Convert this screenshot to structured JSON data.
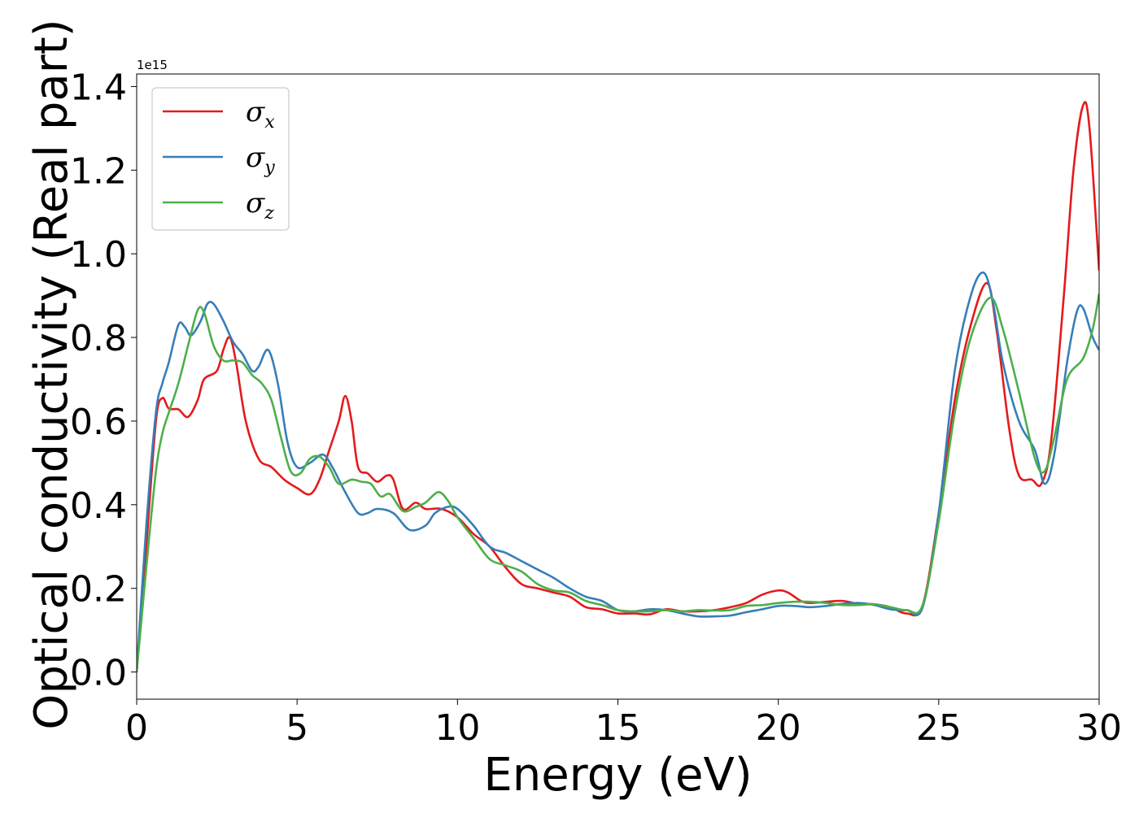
{
  "chart_data": {
    "type": "line",
    "xlabel": "Energy (eV)",
    "ylabel": "Optical conductivity (Real part)",
    "y_offset_label": "1e15",
    "xlim": [
      0,
      30
    ],
    "ylim": [
      -0.065,
      1.43
    ],
    "xticks": [
      0,
      5,
      10,
      15,
      20,
      25,
      30
    ],
    "xtick_labels": [
      "0",
      "5",
      "10",
      "15",
      "20",
      "25",
      "30"
    ],
    "yticks": [
      0.0,
      0.2,
      0.4,
      0.6,
      0.8,
      1.0,
      1.2,
      1.4
    ],
    "ytick_labels": [
      "0.0",
      "0.2",
      "0.4",
      "0.6",
      "0.8",
      "1.0",
      "1.2",
      "1.4"
    ],
    "grid": false,
    "legend_position": "top-left",
    "series": [
      {
        "name": "σx",
        "symbol": "σ",
        "subscript": "x",
        "color": "#e41a1c",
        "points": [
          [
            0,
            0.0
          ],
          [
            0.3,
            0.3
          ],
          [
            0.6,
            0.6
          ],
          [
            0.8,
            0.655
          ],
          [
            1.0,
            0.63
          ],
          [
            1.3,
            0.628
          ],
          [
            1.6,
            0.61
          ],
          [
            1.9,
            0.65
          ],
          [
            2.1,
            0.7
          ],
          [
            2.5,
            0.72
          ],
          [
            2.7,
            0.77
          ],
          [
            2.9,
            0.8
          ],
          [
            3.1,
            0.74
          ],
          [
            3.4,
            0.6
          ],
          [
            3.8,
            0.51
          ],
          [
            4.2,
            0.49
          ],
          [
            4.6,
            0.46
          ],
          [
            5.0,
            0.44
          ],
          [
            5.4,
            0.425
          ],
          [
            5.7,
            0.46
          ],
          [
            6.0,
            0.53
          ],
          [
            6.3,
            0.6
          ],
          [
            6.5,
            0.66
          ],
          [
            6.7,
            0.6
          ],
          [
            6.9,
            0.49
          ],
          [
            7.2,
            0.475
          ],
          [
            7.5,
            0.455
          ],
          [
            7.8,
            0.47
          ],
          [
            8.0,
            0.46
          ],
          [
            8.3,
            0.39
          ],
          [
            8.7,
            0.405
          ],
          [
            9.0,
            0.39
          ],
          [
            9.5,
            0.39
          ],
          [
            10.0,
            0.37
          ],
          [
            10.5,
            0.33
          ],
          [
            11.0,
            0.3
          ],
          [
            11.5,
            0.25
          ],
          [
            12.0,
            0.21
          ],
          [
            12.5,
            0.2
          ],
          [
            13.0,
            0.19
          ],
          [
            13.5,
            0.18
          ],
          [
            14.0,
            0.155
          ],
          [
            14.5,
            0.15
          ],
          [
            15.0,
            0.14
          ],
          [
            15.5,
            0.14
          ],
          [
            16.0,
            0.138
          ],
          [
            16.5,
            0.15
          ],
          [
            17.0,
            0.145
          ],
          [
            17.5,
            0.145
          ],
          [
            18.0,
            0.148
          ],
          [
            18.5,
            0.155
          ],
          [
            19.0,
            0.165
          ],
          [
            19.5,
            0.185
          ],
          [
            20.0,
            0.195
          ],
          [
            20.3,
            0.19
          ],
          [
            20.7,
            0.17
          ],
          [
            21.0,
            0.165
          ],
          [
            21.5,
            0.168
          ],
          [
            22.0,
            0.17
          ],
          [
            22.5,
            0.163
          ],
          [
            23.0,
            0.162
          ],
          [
            23.5,
            0.155
          ],
          [
            24.0,
            0.14
          ],
          [
            24.5,
            0.16
          ],
          [
            25.0,
            0.38
          ],
          [
            25.5,
            0.65
          ],
          [
            26.0,
            0.83
          ],
          [
            26.5,
            0.93
          ],
          [
            26.8,
            0.82
          ],
          [
            27.2,
            0.58
          ],
          [
            27.5,
            0.47
          ],
          [
            27.9,
            0.46
          ],
          [
            28.2,
            0.45
          ],
          [
            28.5,
            0.55
          ],
          [
            28.9,
            0.9
          ],
          [
            29.2,
            1.2
          ],
          [
            29.5,
            1.355
          ],
          [
            29.7,
            1.3
          ],
          [
            30.0,
            0.96
          ]
        ]
      },
      {
        "name": "σy",
        "symbol": "σ",
        "subscript": "y",
        "color": "#377eb8",
        "points": [
          [
            0,
            0.0
          ],
          [
            0.3,
            0.35
          ],
          [
            0.6,
            0.62
          ],
          [
            0.8,
            0.69
          ],
          [
            1.0,
            0.74
          ],
          [
            1.3,
            0.83
          ],
          [
            1.5,
            0.825
          ],
          [
            1.7,
            0.805
          ],
          [
            2.0,
            0.84
          ],
          [
            2.2,
            0.88
          ],
          [
            2.4,
            0.88
          ],
          [
            2.7,
            0.84
          ],
          [
            3.0,
            0.79
          ],
          [
            3.3,
            0.76
          ],
          [
            3.6,
            0.72
          ],
          [
            3.8,
            0.73
          ],
          [
            4.1,
            0.77
          ],
          [
            4.4,
            0.69
          ],
          [
            4.7,
            0.55
          ],
          [
            5.0,
            0.49
          ],
          [
            5.4,
            0.5
          ],
          [
            5.8,
            0.52
          ],
          [
            6.1,
            0.49
          ],
          [
            6.5,
            0.43
          ],
          [
            6.9,
            0.38
          ],
          [
            7.2,
            0.38
          ],
          [
            7.5,
            0.39
          ],
          [
            8.0,
            0.38
          ],
          [
            8.5,
            0.34
          ],
          [
            9.0,
            0.35
          ],
          [
            9.3,
            0.38
          ],
          [
            9.7,
            0.395
          ],
          [
            10.0,
            0.39
          ],
          [
            10.5,
            0.35
          ],
          [
            11.0,
            0.3
          ],
          [
            11.5,
            0.285
          ],
          [
            12.0,
            0.265
          ],
          [
            12.5,
            0.245
          ],
          [
            13.0,
            0.225
          ],
          [
            13.5,
            0.2
          ],
          [
            14.0,
            0.18
          ],
          [
            14.5,
            0.17
          ],
          [
            15.0,
            0.148
          ],
          [
            15.5,
            0.145
          ],
          [
            16.0,
            0.15
          ],
          [
            16.5,
            0.148
          ],
          [
            17.0,
            0.14
          ],
          [
            17.5,
            0.133
          ],
          [
            18.0,
            0.133
          ],
          [
            18.5,
            0.135
          ],
          [
            19.0,
            0.143
          ],
          [
            19.5,
            0.15
          ],
          [
            20.0,
            0.158
          ],
          [
            20.5,
            0.158
          ],
          [
            21.0,
            0.155
          ],
          [
            21.5,
            0.158
          ],
          [
            22.0,
            0.163
          ],
          [
            22.5,
            0.165
          ],
          [
            23.0,
            0.16
          ],
          [
            23.5,
            0.15
          ],
          [
            24.0,
            0.148
          ],
          [
            24.5,
            0.155
          ],
          [
            25.0,
            0.38
          ],
          [
            25.5,
            0.72
          ],
          [
            26.0,
            0.9
          ],
          [
            26.4,
            0.955
          ],
          [
            26.7,
            0.88
          ],
          [
            27.0,
            0.74
          ],
          [
            27.5,
            0.6
          ],
          [
            28.0,
            0.53
          ],
          [
            28.3,
            0.45
          ],
          [
            28.6,
            0.52
          ],
          [
            29.0,
            0.74
          ],
          [
            29.3,
            0.86
          ],
          [
            29.5,
            0.87
          ],
          [
            29.8,
            0.8
          ],
          [
            30.0,
            0.77
          ]
        ]
      },
      {
        "name": "σz",
        "symbol": "σ",
        "subscript": "z",
        "color": "#4daf4a",
        "points": [
          [
            0,
            0.0
          ],
          [
            0.3,
            0.25
          ],
          [
            0.6,
            0.48
          ],
          [
            0.8,
            0.57
          ],
          [
            1.0,
            0.62
          ],
          [
            1.3,
            0.69
          ],
          [
            1.6,
            0.78
          ],
          [
            1.9,
            0.865
          ],
          [
            2.1,
            0.86
          ],
          [
            2.4,
            0.78
          ],
          [
            2.7,
            0.745
          ],
          [
            3.0,
            0.745
          ],
          [
            3.3,
            0.74
          ],
          [
            3.6,
            0.71
          ],
          [
            3.9,
            0.69
          ],
          [
            4.2,
            0.65
          ],
          [
            4.5,
            0.56
          ],
          [
            4.8,
            0.48
          ],
          [
            5.1,
            0.475
          ],
          [
            5.4,
            0.51
          ],
          [
            5.7,
            0.515
          ],
          [
            6.0,
            0.49
          ],
          [
            6.3,
            0.45
          ],
          [
            6.7,
            0.46
          ],
          [
            7.0,
            0.455
          ],
          [
            7.3,
            0.45
          ],
          [
            7.6,
            0.42
          ],
          [
            7.9,
            0.425
          ],
          [
            8.3,
            0.385
          ],
          [
            8.7,
            0.395
          ],
          [
            9.0,
            0.405
          ],
          [
            9.4,
            0.43
          ],
          [
            9.7,
            0.41
          ],
          [
            10.0,
            0.37
          ],
          [
            10.5,
            0.32
          ],
          [
            11.0,
            0.27
          ],
          [
            11.5,
            0.255
          ],
          [
            12.0,
            0.24
          ],
          [
            12.5,
            0.21
          ],
          [
            13.0,
            0.195
          ],
          [
            13.5,
            0.19
          ],
          [
            14.0,
            0.17
          ],
          [
            14.5,
            0.16
          ],
          [
            15.0,
            0.148
          ],
          [
            15.5,
            0.145
          ],
          [
            16.0,
            0.145
          ],
          [
            16.5,
            0.148
          ],
          [
            17.0,
            0.145
          ],
          [
            17.5,
            0.148
          ],
          [
            18.0,
            0.147
          ],
          [
            18.5,
            0.148
          ],
          [
            19.0,
            0.158
          ],
          [
            19.5,
            0.16
          ],
          [
            20.0,
            0.165
          ],
          [
            20.5,
            0.168
          ],
          [
            21.0,
            0.168
          ],
          [
            21.5,
            0.165
          ],
          [
            22.0,
            0.16
          ],
          [
            22.5,
            0.16
          ],
          [
            23.0,
            0.162
          ],
          [
            23.5,
            0.155
          ],
          [
            24.0,
            0.148
          ],
          [
            24.5,
            0.16
          ],
          [
            25.0,
            0.36
          ],
          [
            25.5,
            0.62
          ],
          [
            26.0,
            0.8
          ],
          [
            26.6,
            0.895
          ],
          [
            27.0,
            0.82
          ],
          [
            27.5,
            0.67
          ],
          [
            28.0,
            0.51
          ],
          [
            28.3,
            0.48
          ],
          [
            28.6,
            0.56
          ],
          [
            29.0,
            0.7
          ],
          [
            29.5,
            0.75
          ],
          [
            29.8,
            0.82
          ],
          [
            30.0,
            0.905
          ]
        ]
      }
    ]
  }
}
